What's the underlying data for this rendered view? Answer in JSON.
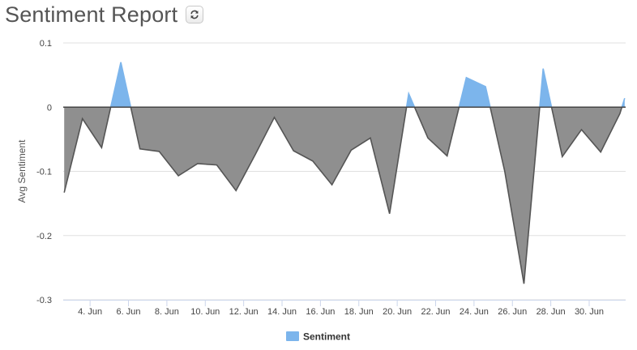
{
  "header": {
    "title": "Sentiment Report",
    "refresh_icon": "refresh-icon"
  },
  "chart_data": {
    "type": "area",
    "title": "Sentiment Report",
    "ylabel": "Avg Sentiment",
    "xlabel": "",
    "ylim": [
      -0.3,
      0.1
    ],
    "y_ticks": [
      "0.1",
      "0",
      "-0.1",
      "-0.2",
      "-0.3"
    ],
    "y_tick_values": [
      0.1,
      0,
      -0.1,
      -0.2,
      -0.3
    ],
    "x_ticks": [
      "4. Jun",
      "6. Jun",
      "8. Jun",
      "10. Jun",
      "12. Jun",
      "14. Jun",
      "16. Jun",
      "18. Jun",
      "20. Jun",
      "22. Jun",
      "24. Jun",
      "26. Jun",
      "28. Jun",
      "30. Jun"
    ],
    "x_tick_days": [
      4,
      6,
      8,
      10,
      12,
      14,
      16,
      18,
      20,
      22,
      24,
      26,
      28,
      30
    ],
    "xlim_days": [
      2.6,
      31.9
    ],
    "grid": true,
    "legend_position": "bottom-center",
    "positive_color": "#7cb5ec",
    "negative_color": "#8f8f8f",
    "line_color": "#555555",
    "series": [
      {
        "name": "Sentiment",
        "x_days": [
          2.65,
          3.6,
          4.6,
          5.6,
          6.6,
          7.6,
          8.6,
          9.6,
          10.6,
          11.6,
          12.6,
          13.6,
          14.6,
          15.6,
          16.6,
          17.6,
          18.6,
          19.6,
          20.6,
          21.6,
          22.6,
          23.6,
          24.6,
          25.6,
          26.6,
          27.6,
          28.6,
          29.6,
          30.6,
          31.6,
          31.85
        ],
        "values": [
          -0.133,
          -0.018,
          -0.063,
          0.07,
          -0.065,
          -0.069,
          -0.107,
          -0.088,
          -0.09,
          -0.13,
          -0.074,
          -0.016,
          -0.068,
          -0.084,
          -0.121,
          -0.067,
          -0.048,
          -0.166,
          0.021,
          -0.048,
          -0.076,
          0.046,
          0.032,
          -0.1,
          -0.275,
          0.06,
          -0.077,
          -0.035,
          -0.07,
          -0.01,
          0.014
        ]
      }
    ]
  }
}
